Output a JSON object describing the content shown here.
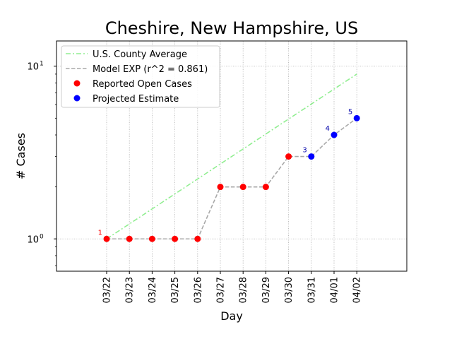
{
  "chart_data": {
    "type": "line",
    "title": "Cheshire, New Hampshire, US",
    "xlabel": "Day",
    "ylabel": "# Cases",
    "yscale": "log",
    "ylim": [
      0.65,
      14
    ],
    "grid": true,
    "legend_position": "top-left",
    "categories": [
      "03/22",
      "03/23",
      "03/24",
      "03/25",
      "03/26",
      "03/27",
      "03/28",
      "03/29",
      "03/30",
      "03/31",
      "04/01",
      "04/02"
    ],
    "y_tick_labels": [
      {
        "value": 1,
        "base": "10",
        "exp": "0"
      },
      {
        "value": 10,
        "base": "10",
        "exp": "1"
      }
    ],
    "series": [
      {
        "name": "U.S. County Average",
        "style": "dashdot",
        "color": "#90ee90",
        "x": [
          "03/22",
          "04/02"
        ],
        "values": [
          1,
          9.0
        ]
      },
      {
        "name": "Model EXP (r^2 = 0.861)",
        "style": "dashed",
        "color": "#a9a9a9",
        "x": [
          "03/22",
          "03/23",
          "03/24",
          "03/25",
          "03/26",
          "03/27",
          "03/28",
          "03/29",
          "03/30",
          "03/31",
          "04/01",
          "04/02"
        ],
        "values": [
          1,
          1,
          1,
          1,
          1,
          2,
          2,
          2,
          3,
          3,
          4,
          5
        ]
      },
      {
        "name": "Reported Open Cases",
        "style": "markers",
        "color": "#ff0000",
        "x": [
          "03/22",
          "03/23",
          "03/24",
          "03/25",
          "03/26",
          "03/27",
          "03/28",
          "03/29",
          "03/30"
        ],
        "values": [
          1,
          1,
          1,
          1,
          1,
          2,
          2,
          2,
          3
        ]
      },
      {
        "name": "Projected Estimate",
        "style": "markers",
        "color": "#0000ff",
        "x": [
          "03/31",
          "04/01",
          "04/02"
        ],
        "values": [
          3,
          4,
          5
        ]
      }
    ],
    "annotations": [
      {
        "text": "1",
        "x": "03/22",
        "y": 1,
        "color": "#ff0000"
      },
      {
        "text": "3",
        "x": "03/31",
        "y": 3,
        "color": "#0000aa"
      },
      {
        "text": "4",
        "x": "04/01",
        "y": 4,
        "color": "#0000aa"
      },
      {
        "text": "5",
        "x": "04/02",
        "y": 5,
        "color": "#0000aa"
      }
    ]
  }
}
